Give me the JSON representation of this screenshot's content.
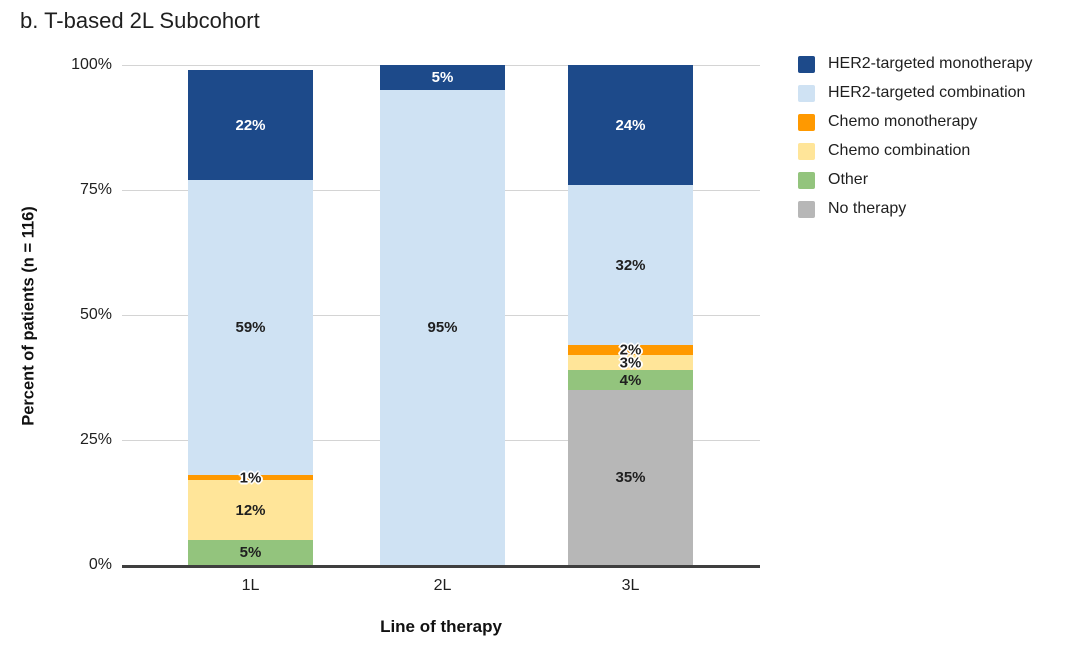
{
  "chart_data": {
    "type": "bar",
    "stacked": true,
    "title": "b. T-based 2L Subcohort",
    "xlabel": "Line of therapy",
    "ylabel": "Percent of patients (n = 116)",
    "categories": [
      "1L",
      "2L",
      "3L"
    ],
    "yticks": [
      "100%",
      "75%",
      "50%",
      "25%",
      "0%"
    ],
    "ylim": [
      0,
      100
    ],
    "grid": true,
    "legend_position": "right",
    "unit": "%",
    "series": [
      {
        "name": "HER2-targeted monotherapy",
        "color": "#1d4a8a",
        "values": [
          22,
          5,
          24
        ]
      },
      {
        "name": "HER2-targeted combination",
        "color": "#cfe2f3",
        "values": [
          59,
          95,
          32
        ]
      },
      {
        "name": "Chemo monotherapy",
        "color": "#ff9900",
        "values": [
          1,
          0,
          2
        ]
      },
      {
        "name": "Chemo combination",
        "color": "#ffe599",
        "values": [
          12,
          0,
          3
        ]
      },
      {
        "name": "Other",
        "color": "#93c47d",
        "values": [
          5,
          0,
          4
        ]
      },
      {
        "name": "No therapy",
        "color": "#b7b7b7",
        "values": [
          0,
          0,
          35
        ]
      }
    ],
    "data_label_suffix": "%"
  }
}
